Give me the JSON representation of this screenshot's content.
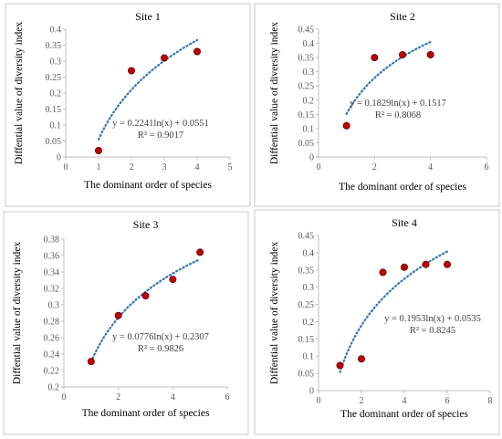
{
  "chart_data": [
    {
      "type": "scatter",
      "title": "Site 1",
      "xlabel": "The dominant order of species",
      "ylabel": "Diffential value of diversity index",
      "xlim": [
        0,
        5
      ],
      "ylim": [
        0,
        0.4
      ],
      "xticks": [
        "0",
        "1",
        "2",
        "3",
        "4",
        "5"
      ],
      "yticks": [
        "0",
        "0.05",
        "0.1",
        "0.15",
        "0.2",
        "0.25",
        "0.3",
        "0.35",
        "0.4"
      ],
      "points": [
        {
          "x": 1,
          "y": 0.02
        },
        {
          "x": 2,
          "y": 0.27
        },
        {
          "x": 3,
          "y": 0.31
        },
        {
          "x": 4,
          "y": 0.33
        }
      ],
      "trendline": {
        "type": "log",
        "a": 0.2241,
        "b": 0.0551,
        "x_range": [
          1,
          4
        ]
      },
      "equation": "y = 0.2241ln(x) + 0.0551",
      "r_squared": "R² = 0.9017",
      "colors": {
        "point": "#c00000",
        "trend": "#2e75b6"
      }
    },
    {
      "type": "scatter",
      "title": "Site 2",
      "xlabel": "The  dominant order of species",
      "ylabel": "Diffential value of diversity  index",
      "xlim": [
        0,
        6
      ],
      "ylim": [
        0,
        0.45
      ],
      "xticks": [
        "0",
        "2",
        "4",
        "6"
      ],
      "yticks": [
        "0",
        "0.05",
        "0.1",
        "0.15",
        "0.2",
        "0.25",
        "0.3",
        "0.35",
        "0.4",
        "0.45"
      ],
      "points": [
        {
          "x": 1,
          "y": 0.11
        },
        {
          "x": 2,
          "y": 0.35
        },
        {
          "x": 3,
          "y": 0.36
        },
        {
          "x": 4,
          "y": 0.36
        }
      ],
      "trendline": {
        "type": "log",
        "a": 0.1829,
        "b": 0.1517,
        "x_range": [
          1,
          4
        ]
      },
      "equation": "y = 0.1829ln(x) + 0.1517",
      "r_squared": "R² = 0.8068",
      "colors": {
        "point": "#c00000",
        "trend": "#2e75b6"
      }
    },
    {
      "type": "scatter",
      "title": "Site 3",
      "xlabel": "The  dominant  order of species",
      "ylabel": "Diffential  value of diversity  index",
      "xlim": [
        0,
        6
      ],
      "ylim": [
        0.2,
        0.38
      ],
      "xticks": [
        "0",
        "2",
        "4",
        "6"
      ],
      "yticks": [
        "0.2",
        "0.22",
        "0.24",
        "0.26",
        "0.28",
        "0.3",
        "0.32",
        "0.34",
        "0.36",
        "0.38"
      ],
      "points": [
        {
          "x": 1,
          "y": 0.231
        },
        {
          "x": 2,
          "y": 0.287
        },
        {
          "x": 3,
          "y": 0.311
        },
        {
          "x": 4,
          "y": 0.331
        },
        {
          "x": 5,
          "y": 0.364
        }
      ],
      "trendline": {
        "type": "log",
        "a": 0.0776,
        "b": 0.2307,
        "x_range": [
          1,
          5
        ]
      },
      "equation": "y = 0.0776ln(x) + 0.2307",
      "r_squared": "R² = 0.9826",
      "colors": {
        "point": "#c00000",
        "trend": "#2e75b6"
      }
    },
    {
      "type": "scatter",
      "title": "Site 4",
      "xlabel": "The  dominant  order of species",
      "ylabel": "Diffential  value of diversity  index",
      "xlim": [
        0,
        8
      ],
      "ylim": [
        0,
        0.45
      ],
      "xticks": [
        "0",
        "2",
        "4",
        "6",
        "8"
      ],
      "yticks": [
        "0",
        "0.05",
        "0.1",
        "0.15",
        "0.2",
        "0.25",
        "0.3",
        "0.35",
        "0.4",
        "0.45"
      ],
      "points": [
        {
          "x": 1,
          "y": 0.073
        },
        {
          "x": 2,
          "y": 0.092
        },
        {
          "x": 3,
          "y": 0.343
        },
        {
          "x": 4,
          "y": 0.358
        },
        {
          "x": 5,
          "y": 0.366
        },
        {
          "x": 6,
          "y": 0.366
        }
      ],
      "trendline": {
        "type": "log",
        "a": 0.1953,
        "b": 0.0535,
        "x_range": [
          1,
          6
        ]
      },
      "equation": "y = 0.1953ln(x) + 0.0535",
      "r_squared": "R² = 0.8245",
      "colors": {
        "point": "#c00000",
        "trend": "#2e75b6"
      }
    }
  ]
}
